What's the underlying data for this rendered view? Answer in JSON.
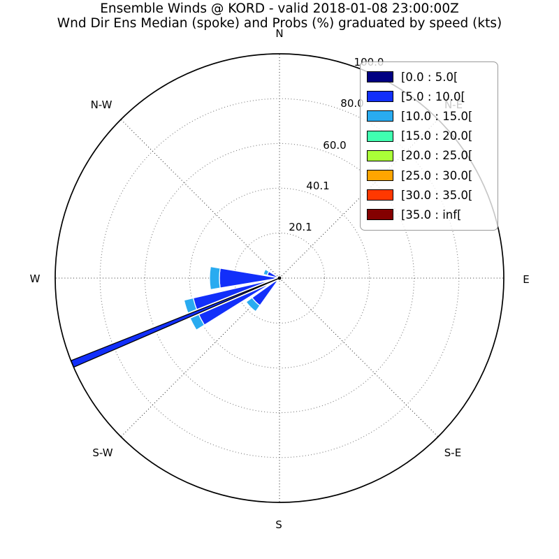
{
  "chart_data": {
    "type": "windrose",
    "title_line1": "Ensemble Winds @ KORD - valid 2018-01-08 23:00:00Z",
    "title_line2": "Wnd Dir Ens Median (spoke) and Probs (%) graduated by speed (kts)",
    "units": "probability_percent",
    "rmax": 100,
    "r_ticks": [
      "20.1",
      "40.1",
      "60.0",
      "80.0",
      "100.0"
    ],
    "r_tick_values": [
      20.1,
      40.1,
      60.0,
      80.0,
      100.0
    ],
    "grid": "dotted",
    "legend_position": "upper-right",
    "compass_labels": [
      "N",
      "N-E",
      "E",
      "S-E",
      "S",
      "S-W",
      "W",
      "N-W"
    ],
    "sector_width_deg": 19,
    "speed_bins_kts": [
      {
        "label": "[0.0 : 5.0[",
        "color": "#000082"
      },
      {
        "label": "[5.0 : 10.0[",
        "color": "#122ffa"
      },
      {
        "label": "[10.0 : 15.0[",
        "color": "#29abf0"
      },
      {
        "label": "[15.0 : 20.0[",
        "color": "#40ffb0"
      },
      {
        "label": "[20.0 : 25.0[",
        "color": "#aaff38"
      },
      {
        "label": "[25.0 : 30.0[",
        "color": "#ffa500"
      },
      {
        "label": "[30.0 : 35.0[",
        "color": "#ff3800"
      },
      {
        "label": "[35.0 : inf[",
        "color": "#840000"
      }
    ],
    "petals": [
      {
        "direction": "SW",
        "bearing_deg": 225.0,
        "segments": [
          {
            "bin_index": 1,
            "from_pct": 0,
            "to_pct": 15.0
          },
          {
            "bin_index": 2,
            "from_pct": 15.0,
            "to_pct": 18.3
          }
        ]
      },
      {
        "direction": "WSW",
        "bearing_deg": 247.5,
        "segments": [
          {
            "bin_index": 1,
            "from_pct": 0,
            "to_pct": 39.5
          },
          {
            "bin_index": 2,
            "from_pct": 39.5,
            "to_pct": 43.7
          }
        ]
      },
      {
        "direction": "W",
        "bearing_deg": 270.0,
        "segments": [
          {
            "bin_index": 1,
            "from_pct": 0,
            "to_pct": 26.8
          },
          {
            "bin_index": 2,
            "from_pct": 26.8,
            "to_pct": 31.2
          }
        ]
      },
      {
        "direction": "WNW",
        "bearing_deg": 292.5,
        "segments": [
          {
            "bin_index": 1,
            "from_pct": 0,
            "to_pct": 5.6
          },
          {
            "bin_index": 2,
            "from_pct": 5.6,
            "to_pct": 7.4
          }
        ]
      }
    ],
    "median_spoke": {
      "bearing_deg": 247.5,
      "length_pct": 100,
      "width_deg": 1.8,
      "fill": "#122ffa",
      "outline": "#000000"
    },
    "colors": {
      "background": "#ffffff",
      "outer_ring": "#000000",
      "grid_circle_dots": "#777777",
      "grid_radial_dots": "#333333",
      "text": "#000000",
      "legend_border": "#999999"
    }
  }
}
